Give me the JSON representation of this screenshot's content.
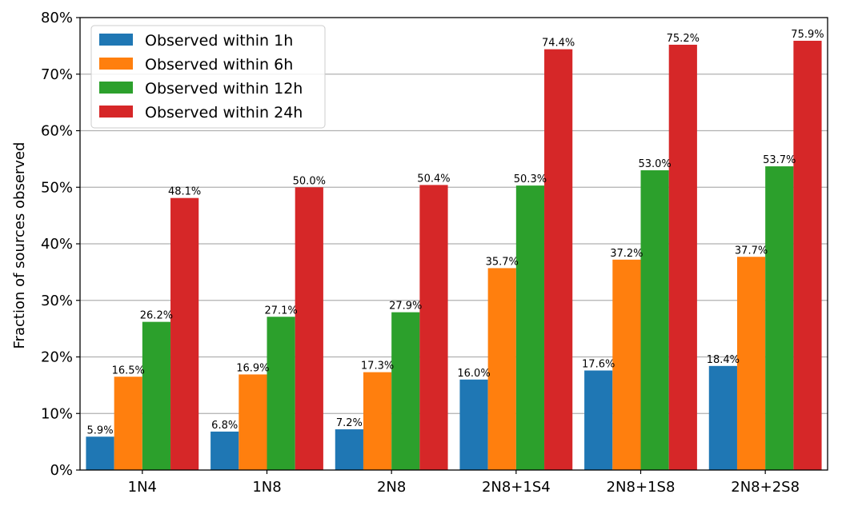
{
  "chart_data": {
    "type": "bar",
    "ylabel": "Fraction of sources observed",
    "xlabel": "",
    "title": "",
    "categories": [
      "1N4",
      "1N8",
      "2N8",
      "2N8+1S4",
      "2N8+1S8",
      "2N8+2S8"
    ],
    "ylim": [
      0,
      80
    ],
    "yticks": [
      0,
      10,
      20,
      30,
      40,
      50,
      60,
      70,
      80
    ],
    "ytick_labels": [
      "0%",
      "10%",
      "20%",
      "30%",
      "40%",
      "50%",
      "60%",
      "70%",
      "80%"
    ],
    "grid": "y-major",
    "legend_position": "top-left",
    "series": [
      {
        "name": "Observed within 1h",
        "color": "#1f77b4",
        "values": [
          5.9,
          6.8,
          7.2,
          16.0,
          17.6,
          18.4
        ],
        "labels": [
          "5.9%",
          "6.8%",
          "7.2%",
          "16.0%",
          "17.6%",
          "18.4%"
        ]
      },
      {
        "name": "Observed within 6h",
        "color": "#ff7f0e",
        "values": [
          16.5,
          16.9,
          17.3,
          35.7,
          37.2,
          37.7
        ],
        "labels": [
          "16.5%",
          "16.9%",
          "17.3%",
          "35.7%",
          "37.2%",
          "37.7%"
        ]
      },
      {
        "name": "Observed within 12h",
        "color": "#2ca02c",
        "values": [
          26.2,
          27.1,
          27.9,
          50.3,
          53.0,
          53.7
        ],
        "labels": [
          "26.2%",
          "27.1%",
          "27.9%",
          "50.3%",
          "53.0%",
          "53.7%"
        ]
      },
      {
        "name": "Observed within 24h",
        "color": "#d62728",
        "values": [
          48.1,
          50.0,
          50.4,
          74.4,
          75.2,
          75.9
        ],
        "labels": [
          "48.1%",
          "50.0%",
          "50.4%",
          "74.4%",
          "75.2%",
          "75.9%"
        ]
      }
    ]
  }
}
